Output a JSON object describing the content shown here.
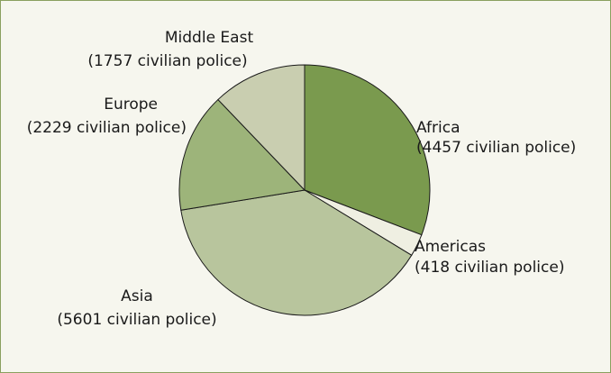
{
  "chart_data": {
    "type": "pie",
    "title": "",
    "slices": [
      {
        "label": "Africa",
        "value": 4457,
        "value_text": "(4457 civilian police)",
        "color": "#7a9a4e"
      },
      {
        "label": "Americas",
        "value": 418,
        "value_text": "(418 civilian police)",
        "color": "#efefe2"
      },
      {
        "label": "Asia",
        "value": 5601,
        "value_text": "(5601 civilian police)",
        "color": "#b8c59d"
      },
      {
        "label": "Europe",
        "value": 2229,
        "value_text": "(2229 civilian police)",
        "color": "#9db47a"
      },
      {
        "label": "Middle East",
        "value": 1757,
        "value_text": "(1757 civilian police)",
        "color": "#c9ceb0"
      }
    ],
    "start_angle_deg": 0,
    "direction": "clockwise",
    "border_color": "#8aa05f",
    "background_color": "#f6f6ee"
  }
}
